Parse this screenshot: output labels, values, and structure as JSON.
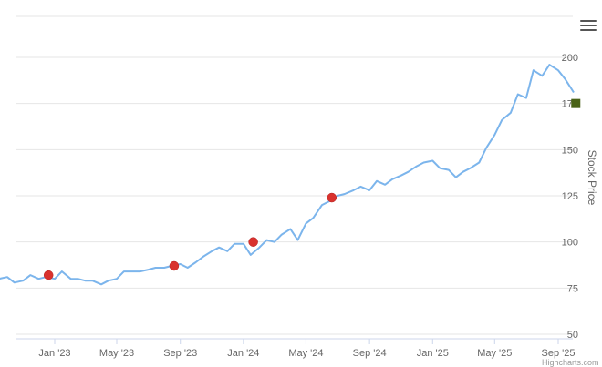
{
  "chart_data": {
    "type": "line",
    "title": "",
    "xlabel": "",
    "ylabel": "Stock Price",
    "ylim": [
      40,
      220
    ],
    "y_ticks": [
      50,
      75,
      100,
      125,
      150,
      175,
      200
    ],
    "x_tick_labels": [
      "Jan '23",
      "May '23",
      "Sep '23",
      "Jan '24",
      "May '24",
      "Sep '24",
      "Jan '25",
      "May '25",
      "Sep '25"
    ],
    "x_tick_dates": [
      "2023-01-01",
      "2023-05-01",
      "2023-09-01",
      "2024-01-01",
      "2024-05-01",
      "2024-09-01",
      "2025-01-01",
      "2025-05-01",
      "2025-09-01"
    ],
    "grid": true,
    "series": [
      {
        "color": "#7cb5ec",
        "x": [
          "2022-09-15",
          "2022-10-01",
          "2022-10-15",
          "2022-11-01",
          "2022-11-15",
          "2022-12-01",
          "2022-12-15",
          "2023-01-01",
          "2023-01-15",
          "2023-02-01",
          "2023-02-15",
          "2023-03-01",
          "2023-03-15",
          "2023-04-01",
          "2023-04-15",
          "2023-05-01",
          "2023-05-15",
          "2023-06-01",
          "2023-06-15",
          "2023-07-01",
          "2023-07-15",
          "2023-08-01",
          "2023-08-15",
          "2023-09-01",
          "2023-09-15",
          "2023-10-01",
          "2023-10-15",
          "2023-11-01",
          "2023-11-15",
          "2023-12-01",
          "2023-12-15",
          "2024-01-01",
          "2024-01-15",
          "2024-02-01",
          "2024-02-15",
          "2024-03-01",
          "2024-03-15",
          "2024-04-01",
          "2024-04-15",
          "2024-05-01",
          "2024-05-15",
          "2024-06-01",
          "2024-06-15",
          "2024-07-01",
          "2024-07-15",
          "2024-08-01",
          "2024-08-15",
          "2024-09-01",
          "2024-09-15",
          "2024-10-01",
          "2024-10-15",
          "2024-11-01",
          "2024-11-15",
          "2024-12-01",
          "2024-12-15",
          "2025-01-01",
          "2025-01-15",
          "2025-02-01",
          "2025-02-15",
          "2025-03-01",
          "2025-03-15",
          "2025-04-01",
          "2025-04-15",
          "2025-05-01",
          "2025-05-15",
          "2025-06-01",
          "2025-06-15",
          "2025-07-01",
          "2025-07-15",
          "2025-08-01",
          "2025-08-15",
          "2025-09-01",
          "2025-09-15",
          "2025-10-01"
        ],
        "values": [
          80,
          81,
          78,
          79,
          82,
          80,
          81,
          80,
          84,
          80,
          80,
          79,
          79,
          77,
          79,
          80,
          84,
          84,
          84,
          85,
          86,
          86,
          87,
          88,
          86,
          89,
          92,
          95,
          97,
          95,
          99,
          99,
          93,
          97,
          101,
          100,
          104,
          107,
          101,
          110,
          113,
          120,
          122,
          125,
          126,
          128,
          130,
          128,
          133,
          131,
          134,
          136,
          138,
          141,
          143,
          144,
          140,
          139,
          135,
          138,
          140,
          143,
          151,
          158,
          166,
          170,
          180,
          178,
          193,
          190,
          196,
          193,
          188,
          181
        ]
      }
    ],
    "event_markers": [
      {
        "date": "2022-12-20",
        "value": 82
      },
      {
        "date": "2023-08-20",
        "value": 87
      },
      {
        "date": "2024-01-20",
        "value": 100
      },
      {
        "date": "2024-06-20",
        "value": 124
      }
    ],
    "last_value_flag": {
      "date": "2025-10-05",
      "value": 175,
      "color": "#4a6318"
    }
  }
}
